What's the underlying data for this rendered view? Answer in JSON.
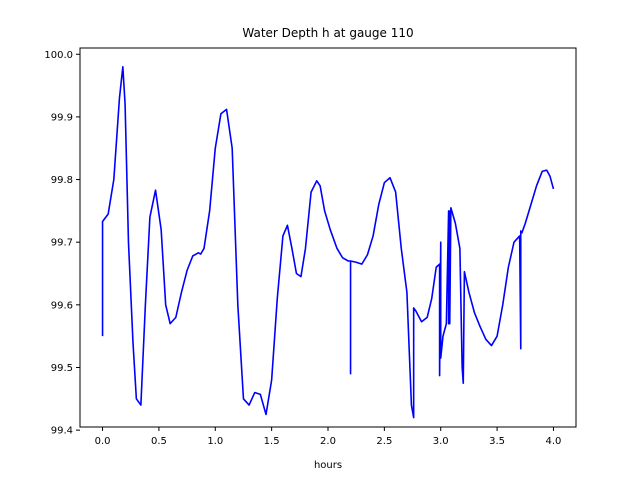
{
  "chart_data": {
    "type": "line",
    "title": "Water Depth h at gauge 110",
    "xlabel": "hours",
    "ylabel": "",
    "xlim": [
      -0.2,
      4.2
    ],
    "ylim": [
      99.405,
      100.01
    ],
    "xticks": [
      0.0,
      0.5,
      1.0,
      1.5,
      2.0,
      2.5,
      3.0,
      3.5,
      4.0
    ],
    "xtick_labels": [
      "0.0",
      "0.5",
      "1.0",
      "1.5",
      "2.0",
      "2.5",
      "3.0",
      "3.5",
      "4.0"
    ],
    "yticks": [
      99.4,
      99.5,
      99.6,
      99.7,
      99.8,
      99.9,
      100.0
    ],
    "ytick_labels": [
      "99.4",
      "99.5",
      "99.6",
      "99.7",
      "99.8",
      "99.9",
      "100.0"
    ],
    "grid": false,
    "series": [
      {
        "color": "#0000ff",
        "x": [
          0.0,
          0.0,
          0.05,
          0.1,
          0.15,
          0.18,
          0.2,
          0.23,
          0.27,
          0.3,
          0.34,
          0.38,
          0.42,
          0.47,
          0.52,
          0.56,
          0.6,
          0.65,
          0.7,
          0.75,
          0.8,
          0.85,
          0.87,
          0.9,
          0.95,
          1.0,
          1.05,
          1.1,
          1.15,
          1.2,
          1.25,
          1.3,
          1.35,
          1.4,
          1.45,
          1.5,
          1.55,
          1.6,
          1.64,
          1.68,
          1.72,
          1.76,
          1.8,
          1.85,
          1.9,
          1.93,
          1.97,
          2.02,
          2.08,
          2.13,
          2.18,
          2.2,
          2.2,
          2.2,
          2.25,
          2.3,
          2.35,
          2.4,
          2.45,
          2.5,
          2.55,
          2.6,
          2.65,
          2.7,
          2.74,
          2.74,
          2.76,
          2.76,
          2.78,
          2.78,
          2.83,
          2.88,
          2.92,
          2.96,
          2.99,
          2.99,
          3.0,
          3.0,
          3.02,
          3.05,
          3.07,
          3.07,
          3.08,
          3.08,
          3.09,
          3.13,
          3.17,
          3.19,
          3.2,
          3.21,
          3.25,
          3.3,
          3.35,
          3.4,
          3.45,
          3.5,
          3.55,
          3.6,
          3.65,
          3.7,
          3.71,
          3.71,
          3.72,
          3.75,
          3.8,
          3.85,
          3.9,
          3.94,
          3.97,
          4.0
        ],
        "y": [
          99.55,
          99.733,
          99.745,
          99.8,
          99.93,
          99.98,
          99.92,
          99.7,
          99.54,
          99.45,
          99.44,
          99.6,
          99.74,
          99.783,
          99.72,
          99.6,
          99.57,
          99.58,
          99.62,
          99.655,
          99.678,
          99.683,
          99.681,
          99.69,
          99.75,
          99.85,
          99.905,
          99.912,
          99.85,
          99.6,
          99.45,
          99.44,
          99.46,
          99.457,
          99.425,
          99.48,
          99.61,
          99.71,
          99.727,
          99.69,
          99.65,
          99.645,
          99.69,
          99.78,
          99.798,
          99.79,
          99.75,
          99.72,
          99.69,
          99.675,
          99.67,
          99.67,
          99.49,
          99.67,
          99.668,
          99.665,
          99.68,
          99.71,
          99.76,
          99.795,
          99.803,
          99.78,
          99.69,
          99.62,
          99.44,
          99.44,
          99.42,
          99.595,
          99.59,
          99.59,
          99.573,
          99.58,
          99.61,
          99.66,
          99.665,
          99.487,
          99.7,
          99.515,
          99.55,
          99.57,
          99.75,
          99.57,
          99.75,
          99.57,
          99.755,
          99.73,
          99.69,
          99.5,
          99.475,
          99.653,
          99.62,
          99.587,
          99.565,
          99.545,
          99.535,
          99.55,
          99.6,
          99.66,
          99.7,
          99.71,
          99.53,
          99.718,
          99.715,
          99.73,
          99.76,
          99.79,
          99.813,
          99.815,
          99.805,
          99.785
        ]
      }
    ]
  }
}
